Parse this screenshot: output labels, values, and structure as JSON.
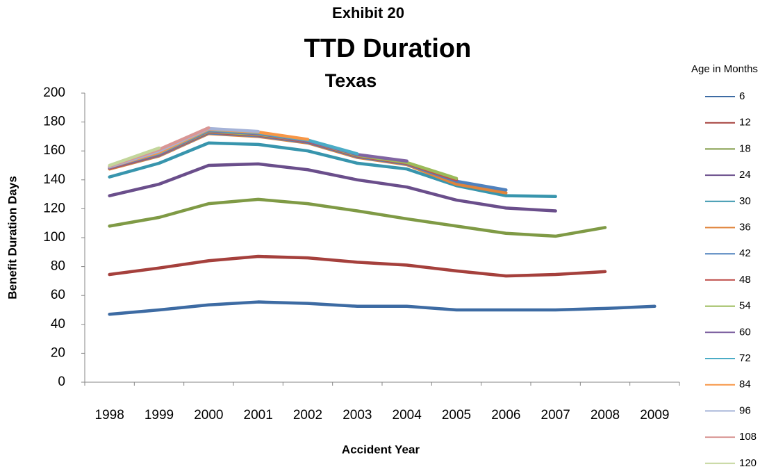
{
  "chart_data": {
    "type": "line",
    "titles": [
      "Exhibit 20",
      "TTD Duration",
      "Texas"
    ],
    "x_label": "Accident Year",
    "y_label": "Benefit Duration Days",
    "legend_title": "Age in Months",
    "categories": [
      "1998",
      "1999",
      "2000",
      "2001",
      "2002",
      "2003",
      "2004",
      "2005",
      "2006",
      "2007",
      "2008",
      "2009"
    ],
    "ylim": [
      0,
      200
    ],
    "yticks": [
      0,
      20,
      40,
      60,
      80,
      100,
      120,
      140,
      160,
      180,
      200
    ],
    "grid": false,
    "legend": "right",
    "series": [
      {
        "name": "6",
        "color": "#3d6ba3",
        "values": [
          47,
          50,
          53.5,
          55.5,
          54.5,
          52.5,
          52.5,
          50,
          50,
          50,
          51,
          52.5
        ]
      },
      {
        "name": "12",
        "color": "#a5403c",
        "values": [
          74.5,
          79,
          84,
          87,
          86,
          83,
          81,
          77,
          73.5,
          74.5,
          76.5,
          null
        ]
      },
      {
        "name": "18",
        "color": "#7f9a45",
        "values": [
          108,
          114,
          123.5,
          126.5,
          123.5,
          118.5,
          113,
          108,
          103,
          101,
          107,
          null
        ]
      },
      {
        "name": "24",
        "color": "#6a4e8b",
        "values": [
          129,
          137,
          150,
          151,
          147,
          140,
          135,
          126,
          120.5,
          118.5,
          null,
          null
        ]
      },
      {
        "name": "30",
        "color": "#3895ad",
        "values": [
          142,
          151.5,
          165.5,
          164.5,
          160,
          151.5,
          147.5,
          136,
          129,
          128.5,
          null,
          null
        ]
      },
      {
        "name": "36",
        "color": "#e0843c",
        "values": [
          147.5,
          156.5,
          172,
          170,
          165.5,
          155.5,
          150.5,
          137,
          131,
          null,
          null,
          null
        ]
      },
      {
        "name": "42",
        "color": "#4f81bd",
        "values": [
          148,
          157,
          172.5,
          170.5,
          166,
          156,
          151,
          139,
          133,
          null,
          null,
          null
        ]
      },
      {
        "name": "48",
        "color": "#c0504d",
        "values": [
          148,
          157.5,
          173,
          171,
          166.5,
          156.5,
          151.5,
          140,
          null,
          null,
          null,
          null
        ]
      },
      {
        "name": "54",
        "color": "#9bbb59",
        "values": [
          148.5,
          158,
          173.5,
          171.5,
          167,
          157,
          152,
          141,
          null,
          null,
          null,
          null
        ]
      },
      {
        "name": "60",
        "color": "#8064a2",
        "values": [
          148.5,
          158,
          174,
          172,
          167,
          157.5,
          153,
          null,
          null,
          null,
          null,
          null
        ]
      },
      {
        "name": "72",
        "color": "#4bacc6",
        "values": [
          149,
          158.5,
          174.5,
          172.5,
          167.5,
          158,
          null,
          null,
          null,
          null,
          null,
          null
        ]
      },
      {
        "name": "84",
        "color": "#f79646",
        "values": [
          149,
          159,
          175,
          173,
          168,
          null,
          null,
          null,
          null,
          null,
          null,
          null
        ]
      },
      {
        "name": "96",
        "color": "#a5b3d8",
        "values": [
          149,
          160,
          175.5,
          173.5,
          null,
          null,
          null,
          null,
          null,
          null,
          null,
          null
        ]
      },
      {
        "name": "108",
        "color": "#d99694",
        "values": [
          149.5,
          161,
          176,
          null,
          null,
          null,
          null,
          null,
          null,
          null,
          null,
          null
        ]
      },
      {
        "name": "120",
        "color": "#c3d69b",
        "values": [
          150,
          162,
          null,
          null,
          null,
          null,
          null,
          null,
          null,
          null,
          null,
          null
        ]
      }
    ]
  }
}
